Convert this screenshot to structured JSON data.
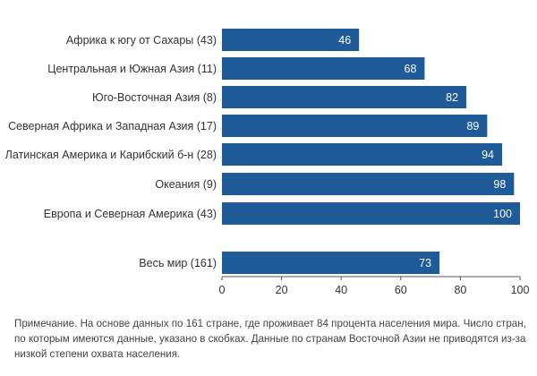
{
  "chart_data": {
    "type": "bar",
    "orientation": "horizontal",
    "categories": [
      "Африка к югу от Сахары (43)",
      "Центральная и Южная Азия (11)",
      "Юго-Восточная Азия (8)",
      "Северная Африка и Западная Азия (17)",
      "Латинская Америка и Карибский б-н (28)",
      "Океания (9)",
      "Европа и Северная Америка (43)",
      "Весь мир (161)"
    ],
    "values": [
      46,
      68,
      82,
      89,
      94,
      98,
      100,
      73
    ],
    "value_labels": [
      "46",
      "68",
      "82",
      "89",
      "94",
      "98",
      "100",
      "73"
    ],
    "xlim": [
      0,
      100
    ],
    "xticks": [
      0,
      20,
      40,
      60,
      80,
      100
    ],
    "xtick_labels": [
      "0",
      "20",
      "40",
      "60",
      "80",
      "100"
    ],
    "title": "",
    "xlabel": "",
    "ylabel": "",
    "grid": false,
    "legend": "none",
    "bar_color": "#1f5a99",
    "value_label_color": "#ffffff"
  },
  "note": {
    "label": "Примечание.",
    "text": "На основе данных по 161 стране, где проживает 84 процента населения мира. Число стран, по которым имеются данные, указано в скобках. Данные по странам Восточной Азии не при­водятся из-за низкой степени охвата населения."
  }
}
